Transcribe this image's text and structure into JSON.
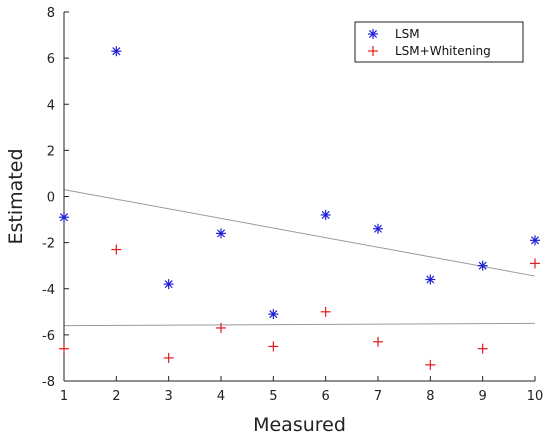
{
  "chart_data": {
    "type": "scatter",
    "xlabel": "Measured",
    "ylabel": "Estimated",
    "xlim": [
      1,
      10
    ],
    "ylim": [
      -8,
      8
    ],
    "xticks": [
      1,
      2,
      3,
      4,
      5,
      6,
      7,
      8,
      9,
      10
    ],
    "yticks": [
      -8,
      -6,
      -4,
      -2,
      0,
      2,
      4,
      6,
      8
    ],
    "grid": false,
    "legend_position": "top-right",
    "series": [
      {
        "name": "LSM",
        "marker": "asterisk",
        "color": "#1f1fd6",
        "x": [
          1,
          2,
          3,
          4,
          5,
          6,
          7,
          8,
          9,
          10
        ],
        "y": [
          -0.9,
          6.3,
          -3.8,
          -1.6,
          -5.1,
          -0.8,
          -1.4,
          -3.6,
          -3.0,
          -1.9
        ]
      },
      {
        "name": "LSM+Whitening",
        "marker": "plus",
        "color": "#e01c1c",
        "x": [
          1,
          2,
          3,
          4,
          5,
          6,
          7,
          8,
          9,
          10
        ],
        "y": [
          -6.6,
          -2.3,
          -7.0,
          -5.7,
          -6.5,
          -5.0,
          -6.3,
          -7.3,
          -6.6,
          -2.9
        ]
      }
    ],
    "fit_lines": [
      {
        "color": "#9a9a9a",
        "x": [
          1,
          10
        ],
        "y": [
          0.3,
          -3.45
        ]
      },
      {
        "color": "#9a9a9a",
        "x": [
          1,
          10
        ],
        "y": [
          -5.6,
          -5.5
        ]
      }
    ]
  }
}
